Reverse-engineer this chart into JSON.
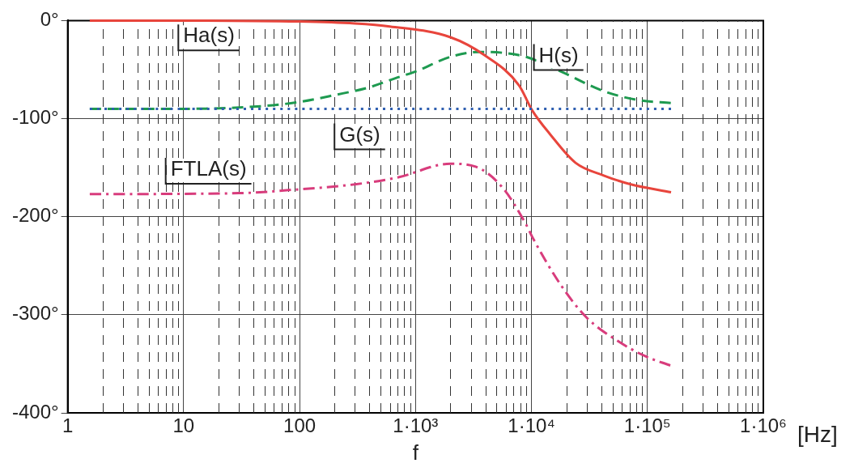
{
  "chart_data": {
    "type": "line",
    "xlabel": "f",
    "annotations": [
      "[Hz]"
    ],
    "log": "x",
    "grid": true,
    "legend": false,
    "marker": "none",
    "xlim": [
      1,
      1000000
    ],
    "xticks": [
      1,
      10,
      100,
      {
        "value": 1000,
        "label": "1·10³"
      },
      {
        "value": 10000,
        "label": "1·10⁴"
      },
      {
        "value": 100000,
        "label": "1·10⁵"
      },
      {
        "value": 1000000,
        "label": "1·10⁶"
      }
    ],
    "ylim": [
      -400,
      0
    ],
    "yticks": [
      {
        "value": 0,
        "label": "0°"
      },
      {
        "value": -100,
        "label": "-100°"
      },
      {
        "value": -200,
        "label": "-200°"
      },
      {
        "value": -300,
        "label": "-300°"
      },
      {
        "value": -400,
        "label": "-400°"
      }
    ],
    "series": [
      {
        "name": "Ha(s)",
        "color": "#e8453c",
        "line_style": "solid",
        "x": [
          1.55,
          10,
          100,
          300,
          600,
          2000,
          3900,
          7800,
          10200,
          14500,
          24000,
          42000,
          72000,
          160000
        ],
        "values": [
          0,
          0,
          -1,
          -3,
          -6,
          -17,
          -35,
          -66,
          -92,
          -116,
          -145,
          -158,
          -167,
          -175
        ]
      },
      {
        "name": "H(s)",
        "color": "#1e9a50",
        "line_style": "dashed",
        "x": [
          1.55,
          10,
          50,
          100,
          200,
          400,
          700,
          1000,
          2000,
          3500,
          5800,
          9000,
          18000,
          42000,
          83000,
          160000
        ],
        "values": [
          -90,
          -90,
          -87,
          -83,
          -76,
          -68,
          -58,
          -52,
          -37,
          -32,
          -33,
          -37,
          -52,
          -72,
          -81,
          -84
        ]
      },
      {
        "name": "G(s)",
        "color": "#2f5fb0",
        "line_style": "dotted",
        "x": [
          1.55,
          160000
        ],
        "values": [
          -90,
          -90
        ]
      },
      {
        "name": "FTLA(s)",
        "color": "#d83c7c",
        "line_style": "dashdot",
        "x": [
          1.55,
          30,
          100,
          300,
          700,
          2000,
          3300,
          5600,
          9000,
          10200,
          18000,
          30000,
          56000,
          95000,
          160000
        ],
        "values": [
          -177,
          -176,
          -172,
          -167,
          -160,
          -146,
          -149,
          -170,
          -208,
          -221,
          -270,
          -303,
          -327,
          -342,
          -352
        ]
      }
    ]
  }
}
